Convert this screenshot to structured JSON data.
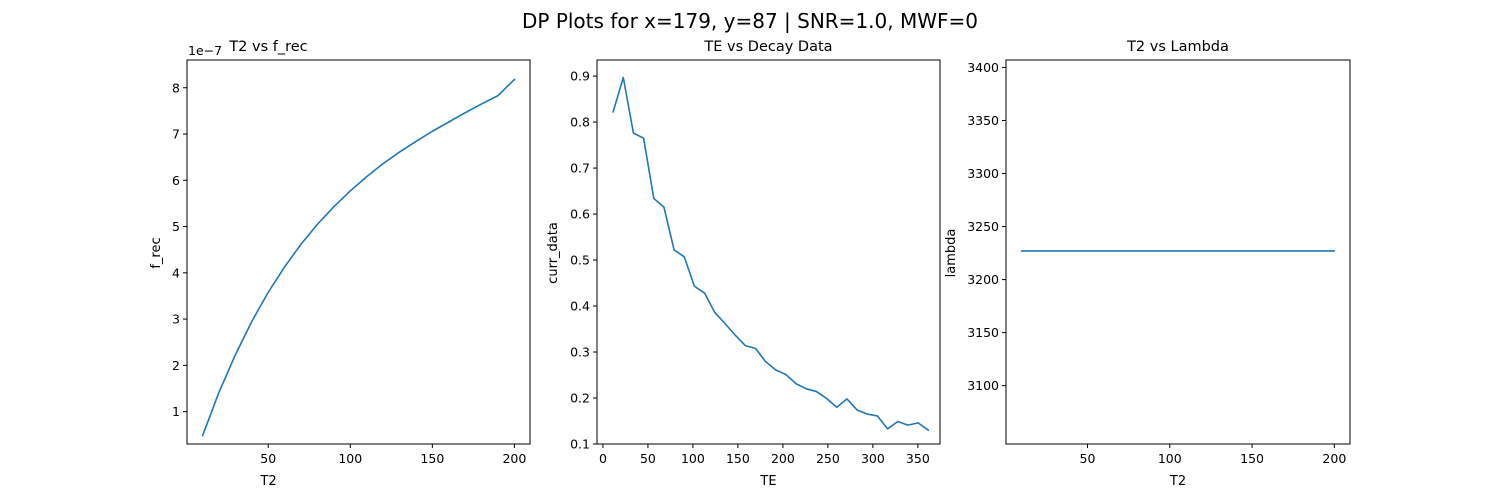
{
  "figure": {
    "suptitle": "DP Plots for x=179, y=87 | SNR=1.0, MWF=0"
  },
  "chart_data": [
    {
      "type": "line",
      "title": "T2 vs f_rec",
      "xlabel": "T2",
      "ylabel": "f_rec",
      "offset_text": "1e−7",
      "xlim": [
        0.5,
        209.5
      ],
      "ylim": [
        0.3,
        8.6
      ],
      "xticks": [
        50,
        100,
        150,
        200
      ],
      "xtick_labels": [
        "50",
        "100",
        "150",
        "200"
      ],
      "yticks": [
        1,
        2,
        3,
        4,
        5,
        6,
        7,
        8
      ],
      "ytick_labels": [
        "1",
        "2",
        "3",
        "4",
        "5",
        "6",
        "7",
        "8"
      ],
      "grid": false,
      "series": [
        {
          "color": "#1f77b4",
          "x": [
            10,
            20,
            30,
            40,
            50,
            60,
            70,
            80,
            90,
            100,
            110,
            120,
            130,
            140,
            150,
            160,
            170,
            180,
            190,
            200
          ],
          "y": [
            0.48,
            1.42,
            2.23,
            2.95,
            3.58,
            4.13,
            4.62,
            5.05,
            5.43,
            5.77,
            6.08,
            6.36,
            6.61,
            6.84,
            7.06,
            7.26,
            7.46,
            7.65,
            7.83,
            8.18
          ]
        }
      ]
    },
    {
      "type": "line",
      "title": "TE vs Decay Data",
      "xlabel": "TE",
      "ylabel": "curr_data",
      "xlim": [
        -6.6,
        374.6
      ],
      "ylim": [
        0.1,
        0.935
      ],
      "xticks": [
        0,
        50,
        100,
        150,
        200,
        250,
        300,
        350
      ],
      "xtick_labels": [
        "0",
        "50",
        "100",
        "150",
        "200",
        "250",
        "300",
        "350"
      ],
      "yticks": [
        0.1,
        0.2,
        0.3,
        0.4,
        0.5,
        0.6,
        0.7,
        0.8,
        0.9
      ],
      "ytick_labels": [
        "0.1",
        "0.2",
        "0.3",
        "0.4",
        "0.5",
        "0.6",
        "0.7",
        "0.8",
        "0.9"
      ],
      "grid": false,
      "series": [
        {
          "color": "#1f77b4",
          "x": [
            11.3,
            22.6,
            33.9,
            45.2,
            56.5,
            67.8,
            79.1,
            90.4,
            101.7,
            113.0,
            124.3,
            135.6,
            146.9,
            158.2,
            169.5,
            180.8,
            192.1,
            203.4,
            214.7,
            226.0,
            237.3,
            248.6,
            259.9,
            271.2,
            282.5,
            293.8,
            305.1,
            316.4,
            327.7,
            339.0,
            350.3,
            361.6
          ],
          "y": [
            0.822,
            0.897,
            0.776,
            0.765,
            0.634,
            0.615,
            0.522,
            0.507,
            0.443,
            0.428,
            0.386,
            0.362,
            0.337,
            0.314,
            0.308,
            0.279,
            0.261,
            0.251,
            0.231,
            0.22,
            0.214,
            0.199,
            0.18,
            0.198,
            0.174,
            0.165,
            0.161,
            0.133,
            0.149,
            0.141,
            0.146,
            0.13
          ]
        }
      ]
    },
    {
      "type": "line",
      "title": "T2 vs Lambda",
      "xlabel": "T2",
      "ylabel": "lambda",
      "xlim": [
        0.5,
        209.5
      ],
      "ylim": [
        3045,
        3407
      ],
      "xticks": [
        50,
        100,
        150,
        200
      ],
      "xtick_labels": [
        "50",
        "100",
        "150",
        "200"
      ],
      "yticks": [
        3100,
        3150,
        3200,
        3250,
        3300,
        3350,
        3400
      ],
      "ytick_labels": [
        "3100",
        "3150",
        "3200",
        "3250",
        "3300",
        "3350",
        "3400"
      ],
      "grid": false,
      "series": [
        {
          "color": "#1f77b4",
          "x": [
            10,
            200
          ],
          "y": [
            3227,
            3227
          ]
        }
      ]
    }
  ]
}
